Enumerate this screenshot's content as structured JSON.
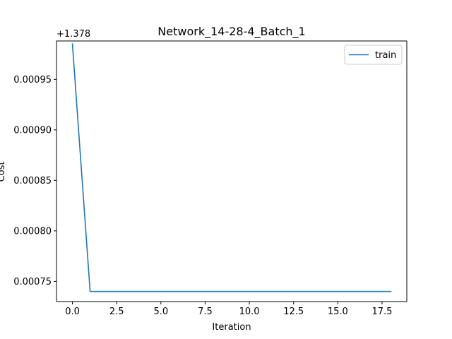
{
  "chart_data": {
    "type": "line",
    "title": "Network_14-28-4_Batch_1",
    "xlabel": "Iteration",
    "ylabel": "Cost",
    "offset_text": "+1.378",
    "xlim": [
      -0.9,
      18.9
    ],
    "ylim": [
      0.00073,
      0.000988
    ],
    "x_ticks": [
      0,
      2.5,
      5,
      7.5,
      10,
      12.5,
      15,
      17.5
    ],
    "x_tick_labels": [
      "0.0",
      "2.5",
      "5.0",
      "7.5",
      "10.0",
      "12.5",
      "15.0",
      "17.5"
    ],
    "y_ticks": [
      0.00075,
      0.0008,
      0.00085,
      0.0009,
      0.00095
    ],
    "y_tick_labels": [
      "0.00075",
      "0.00080",
      "0.00085",
      "0.00090",
      "0.00095"
    ],
    "grid": false,
    "legend_position": "upper right",
    "series": [
      {
        "name": "train",
        "color": "#1f77b4",
        "x": [
          0,
          1,
          2,
          3,
          4,
          5,
          6,
          7,
          8,
          9,
          10,
          11,
          12,
          13,
          14,
          15,
          16,
          17,
          18
        ],
        "values": [
          0.000985,
          0.00074,
          0.00074,
          0.00074,
          0.00074,
          0.00074,
          0.00074,
          0.00074,
          0.00074,
          0.00074,
          0.00074,
          0.00074,
          0.00074,
          0.00074,
          0.00074,
          0.00074,
          0.00074,
          0.00074,
          0.00074
        ]
      }
    ]
  }
}
